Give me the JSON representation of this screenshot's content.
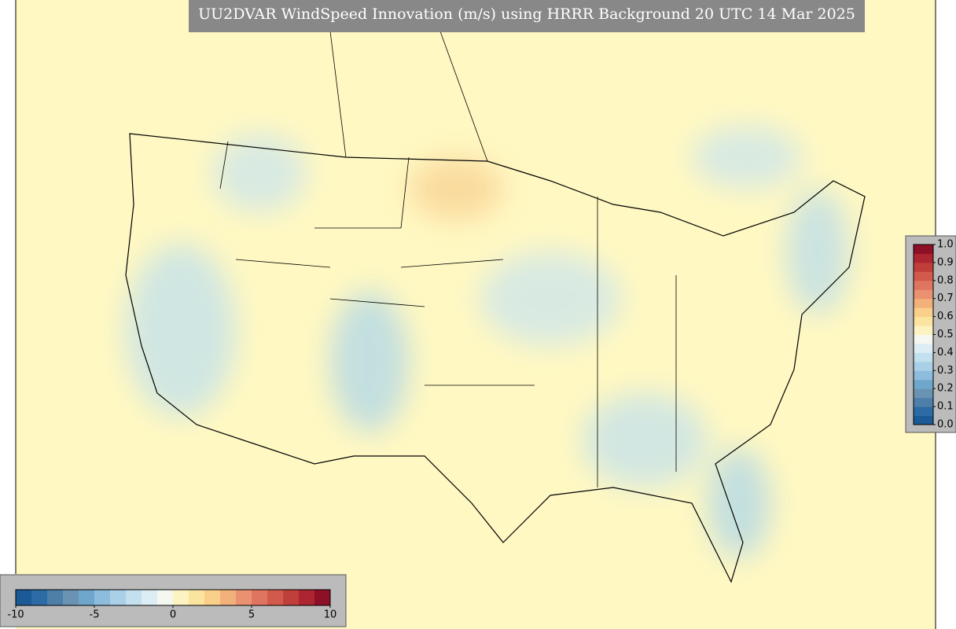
{
  "title": "UU2DVAR WindSpeed Innovation (m/s) using HRRR Background 20 UTC 14 Mar 2025",
  "colorbar_horizontal": {
    "lim": [
      -10,
      10
    ],
    "ticks": [
      -10,
      -5,
      0,
      5,
      10
    ],
    "colors": [
      "#1b5a96",
      "#2c6ba5",
      "#4d7fa8",
      "#6a93b3",
      "#6fa6cc",
      "#8dbcdc",
      "#a9d0e6",
      "#c3e0ee",
      "#dcedf3",
      "#f4f8f0",
      "#fdf3c0",
      "#fbe3a0",
      "#f9cf8a",
      "#f2b07a",
      "#e99170",
      "#df7560",
      "#d25a4c",
      "#c13f3a",
      "#ad2530",
      "#8e1027"
    ]
  },
  "colorbar_vertical": {
    "lim": [
      0,
      1
    ],
    "ticks": [
      {
        "value": 0,
        "label": "0.0"
      },
      {
        "value": 0.1,
        "label": "0.1"
      },
      {
        "value": 0.2,
        "label": "0.2"
      },
      {
        "value": 0.3,
        "label": "0.3"
      },
      {
        "value": 0.4,
        "label": "0.4"
      },
      {
        "value": 0.5,
        "label": "0.5"
      },
      {
        "value": 0.6,
        "label": "0.6"
      },
      {
        "value": 0.7,
        "label": "0.7"
      },
      {
        "value": 0.8,
        "label": "0.8"
      },
      {
        "value": 0.9,
        "label": "0.9"
      },
      {
        "value": 1,
        "label": "1.0"
      }
    ],
    "colors": [
      "#1b5a96",
      "#2c6ba5",
      "#4d7fa8",
      "#6a93b3",
      "#6fa6cc",
      "#8dbcdc",
      "#a9d0e6",
      "#c3e0ee",
      "#dcedf3",
      "#f4f8f0",
      "#fdf3c0",
      "#fbe3a0",
      "#f9cf8a",
      "#f2b07a",
      "#e99170",
      "#df7560",
      "#d25a4c",
      "#c13f3a",
      "#ad2530",
      "#8e1027"
    ]
  }
}
